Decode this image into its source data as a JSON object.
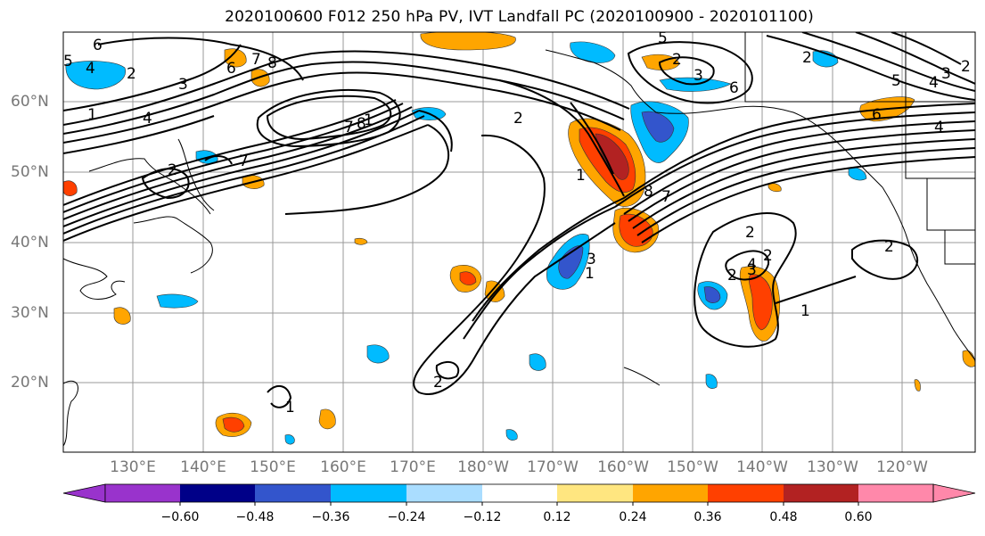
{
  "title": "2020100600 F012 250 hPa PV, IVT Landfall PC (2020100900 - 2020101100)",
  "lat_labels": [
    "60°N",
    "50°N",
    "40°N",
    "30°N",
    "20°N"
  ],
  "lon_labels": [
    "130°E",
    "140°E",
    "150°E",
    "160°E",
    "170°E",
    "180°W",
    "170°W",
    "160°W",
    "150°W",
    "140°W",
    "130°W",
    "120°W"
  ],
  "colorbar": {
    "ticks": [
      "−0.60",
      "−0.48",
      "−0.36",
      "−0.24",
      "−0.12",
      "0.12",
      "0.24",
      "0.36",
      "0.48",
      "0.60"
    ],
    "colors": [
      "#9933cc",
      "#000088",
      "#3355cc",
      "#00bbff",
      "#aaddff",
      "#ffffff",
      "#ffe680",
      "#ffa500",
      "#ff4000",
      "#b22222",
      "#ff88aa"
    ]
  },
  "contour_labels": [
    "6",
    "4",
    "2",
    "5",
    "3",
    "1",
    "4",
    "6",
    "7",
    "8",
    "7",
    "8",
    "2",
    "1",
    "7",
    "8",
    "2",
    "3",
    "5",
    "6",
    "4",
    "3",
    "2",
    "6",
    "4",
    "2",
    "5",
    "1",
    "3",
    "2",
    "1",
    "2",
    "2",
    "4",
    "1",
    "2",
    "2",
    "1",
    "7",
    "3",
    "2"
  ]
}
